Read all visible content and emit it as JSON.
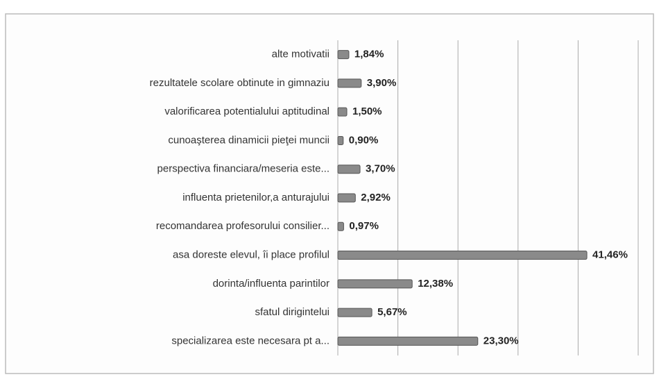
{
  "chart_data": {
    "type": "bar",
    "orientation": "horizontal",
    "categories": [
      "alte motivatii",
      "rezultatele scolare obtinute in gimnaziu",
      "valorificarea potentialului aptitudinal",
      "cunoaşterea dinamicii pieţei muncii",
      "perspectiva financiara/meseria este...",
      "influenta prietenilor,a anturajului",
      "recomandarea profesorului consilier...",
      "asa doreste elevul, îi place profilul",
      "dorinta/influenta parintilor",
      "sfatul dirigintelui",
      "specializarea este necesara pt a..."
    ],
    "values": [
      1.84,
      3.9,
      1.5,
      0.9,
      3.7,
      2.92,
      0.97,
      41.46,
      12.38,
      5.67,
      23.3
    ],
    "value_labels": [
      "1,84%",
      "3,90%",
      "1,50%",
      "0,90%",
      "3,70%",
      "2,92%",
      "0,97%",
      "41,46%",
      "12,38%",
      "5,67%",
      "23,30%"
    ],
    "color": "#8a8a8a",
    "xlim": [
      0,
      50
    ],
    "xticks": [
      0,
      10,
      20,
      30,
      40,
      50
    ],
    "grid": true
  }
}
